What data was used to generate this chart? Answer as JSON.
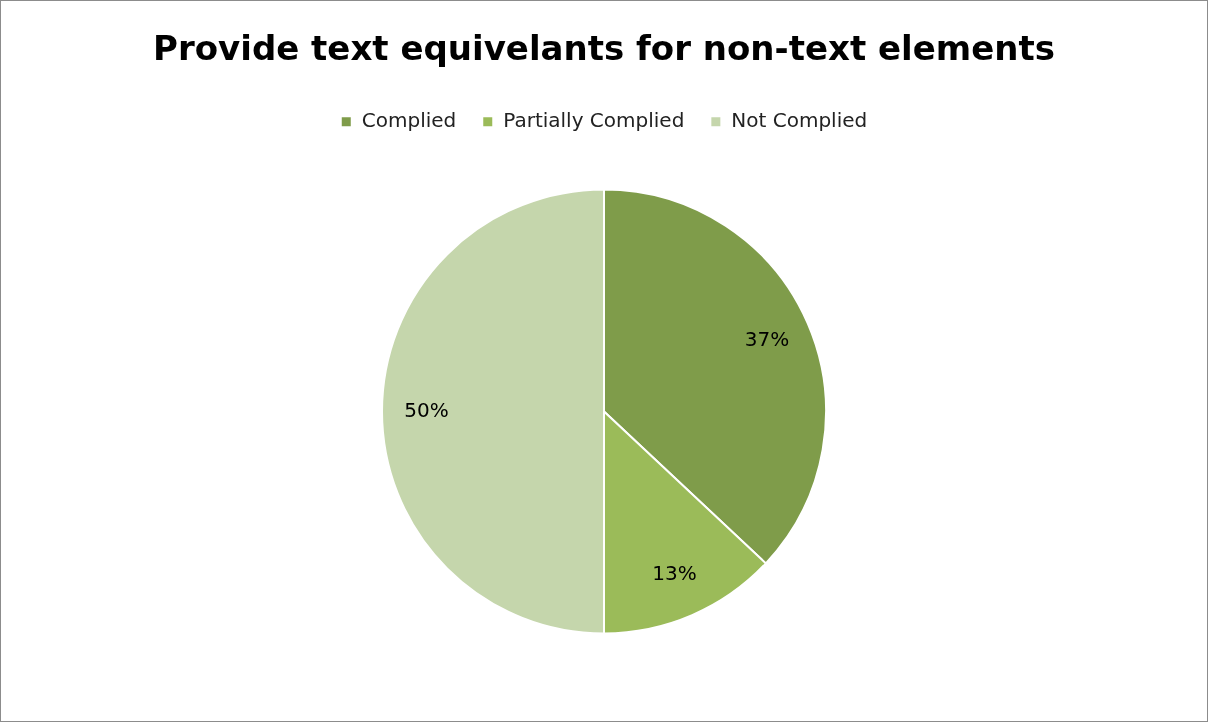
{
  "chart_data": {
    "type": "pie",
    "title": "Provide text equivelants for non-text elements",
    "categories": [
      "Complied",
      "Partially Complied",
      "Not Complied"
    ],
    "values": [
      37,
      13,
      50
    ],
    "value_labels": [
      "37%",
      "13%",
      "50%"
    ],
    "colors": [
      "#7f9c4a",
      "#9bbb59",
      "#c5d6ac"
    ],
    "legend": "top"
  }
}
